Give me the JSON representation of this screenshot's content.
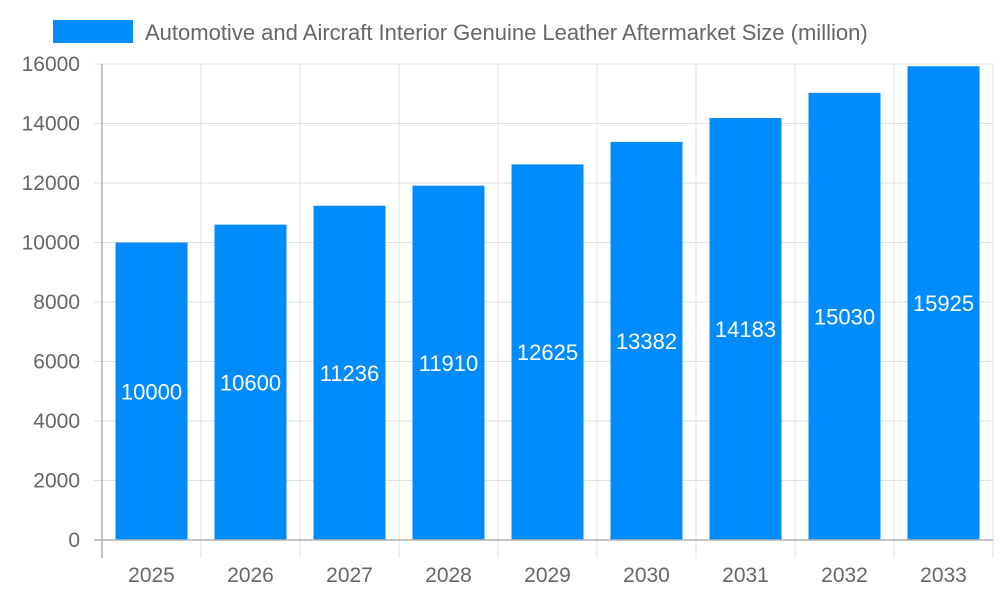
{
  "chart_data": {
    "type": "bar",
    "title": "",
    "xlabel": "",
    "ylabel": "",
    "categories": [
      "2025",
      "2026",
      "2027",
      "2028",
      "2029",
      "2030",
      "2031",
      "2032",
      "2033"
    ],
    "series": [
      {
        "name": "Automotive and Aircraft Interior Genuine Leather Aftermarket Size (million)",
        "values": [
          10000,
          10600,
          11236,
          11910,
          12625,
          13382,
          14183,
          15030,
          15925
        ]
      }
    ],
    "ylim": [
      0,
      16000
    ],
    "yticks": [
      0,
      2000,
      4000,
      6000,
      8000,
      10000,
      12000,
      14000,
      16000
    ],
    "grid": true,
    "legend_position": "top",
    "data_labels": true,
    "colors": {
      "bar": "#008cff",
      "grid": "#e0e0e0",
      "axis": "#b0b0b0",
      "text": "#666666"
    }
  }
}
